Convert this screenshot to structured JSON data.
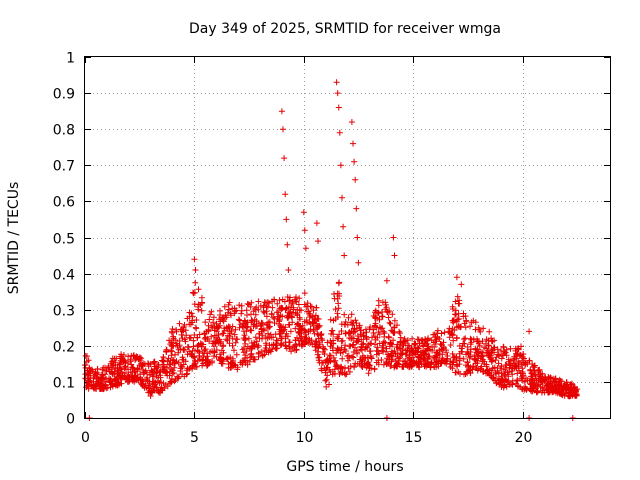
{
  "chart_data": {
    "type": "scatter",
    "title": "Day 349 of 2025, SRMTID for receiver wmga",
    "xlabel": "GPS time / hours",
    "ylabel": "SRMTID / TECUs",
    "xlim": [
      0,
      24
    ],
    "ylim": [
      0,
      1
    ],
    "xticks": [
      0,
      5,
      10,
      15,
      20
    ],
    "xtick_labels": [
      "0",
      "5",
      "10",
      "15",
      "20"
    ],
    "yticks": [
      0,
      0.1,
      0.2,
      0.3,
      0.4,
      0.5,
      0.6,
      0.7,
      0.8,
      0.9,
      1
    ],
    "ytick_labels": [
      "0",
      "0.1",
      "0.2",
      "0.3",
      "0.4",
      "0.5",
      "0.6",
      "0.7",
      "0.8",
      "0.9",
      "1"
    ],
    "grid": true,
    "marker": "plus",
    "color": "#e60000",
    "series": [
      {
        "name": "SRMTID",
        "description": "Approximate envelope of the dense point cloud (hour, typical low, typical high) plus notable spikes",
        "envelope": [
          [
            0.0,
            0.08,
            0.18
          ],
          [
            0.5,
            0.08,
            0.14
          ],
          [
            1.0,
            0.08,
            0.15
          ],
          [
            1.5,
            0.09,
            0.18
          ],
          [
            2.0,
            0.1,
            0.18
          ],
          [
            2.5,
            0.1,
            0.17
          ],
          [
            3.0,
            0.06,
            0.15
          ],
          [
            3.5,
            0.07,
            0.17
          ],
          [
            4.0,
            0.1,
            0.25
          ],
          [
            4.5,
            0.11,
            0.27
          ],
          [
            5.0,
            0.14,
            0.38
          ],
          [
            5.5,
            0.14,
            0.32
          ],
          [
            6.0,
            0.16,
            0.28
          ],
          [
            6.5,
            0.14,
            0.33
          ],
          [
            7.0,
            0.13,
            0.32
          ],
          [
            7.5,
            0.15,
            0.32
          ],
          [
            8.0,
            0.17,
            0.33
          ],
          [
            8.5,
            0.18,
            0.32
          ],
          [
            9.0,
            0.2,
            0.35
          ],
          [
            9.5,
            0.18,
            0.33
          ],
          [
            10.0,
            0.2,
            0.35
          ],
          [
            10.5,
            0.2,
            0.33
          ],
          [
            11.0,
            0.08,
            0.18
          ],
          [
            11.5,
            0.12,
            0.4
          ],
          [
            12.0,
            0.12,
            0.3
          ],
          [
            12.5,
            0.15,
            0.27
          ],
          [
            13.0,
            0.12,
            0.25
          ],
          [
            13.5,
            0.15,
            0.35
          ],
          [
            14.0,
            0.14,
            0.3
          ],
          [
            14.5,
            0.14,
            0.22
          ],
          [
            15.0,
            0.14,
            0.22
          ],
          [
            15.5,
            0.14,
            0.22
          ],
          [
            16.0,
            0.14,
            0.24
          ],
          [
            16.5,
            0.15,
            0.25
          ],
          [
            17.0,
            0.12,
            0.35
          ],
          [
            17.5,
            0.12,
            0.28
          ],
          [
            18.0,
            0.13,
            0.26
          ],
          [
            18.5,
            0.12,
            0.24
          ],
          [
            19.0,
            0.08,
            0.2
          ],
          [
            19.5,
            0.09,
            0.2
          ],
          [
            20.0,
            0.08,
            0.2
          ],
          [
            20.5,
            0.07,
            0.15
          ],
          [
            21.0,
            0.07,
            0.12
          ],
          [
            21.5,
            0.07,
            0.11
          ],
          [
            22.0,
            0.06,
            0.1
          ],
          [
            22.5,
            0.06,
            0.09
          ]
        ],
        "spikes": [
          [
            5.0,
            0.44
          ],
          [
            5.05,
            0.41
          ],
          [
            9.0,
            0.85
          ],
          [
            9.05,
            0.8
          ],
          [
            9.1,
            0.72
          ],
          [
            9.15,
            0.62
          ],
          [
            9.2,
            0.55
          ],
          [
            9.25,
            0.48
          ],
          [
            9.3,
            0.41
          ],
          [
            10.0,
            0.57
          ],
          [
            10.05,
            0.52
          ],
          [
            10.1,
            0.47
          ],
          [
            10.6,
            0.54
          ],
          [
            10.65,
            0.49
          ],
          [
            11.5,
            0.93
          ],
          [
            11.55,
            0.9
          ],
          [
            11.6,
            0.86
          ],
          [
            11.65,
            0.79
          ],
          [
            11.7,
            0.7
          ],
          [
            11.75,
            0.61
          ],
          [
            11.8,
            0.53
          ],
          [
            11.85,
            0.45
          ],
          [
            12.2,
            0.82
          ],
          [
            12.25,
            0.76
          ],
          [
            12.3,
            0.71
          ],
          [
            12.35,
            0.66
          ],
          [
            12.4,
            0.58
          ],
          [
            12.45,
            0.5
          ],
          [
            12.5,
            0.43
          ],
          [
            13.8,
            0.38
          ],
          [
            14.1,
            0.5
          ],
          [
            14.15,
            0.45
          ],
          [
            17.0,
            0.39
          ],
          [
            17.2,
            0.37
          ],
          [
            20.3,
            0.24
          ],
          [
            22.5,
            0.08
          ]
        ],
        "zero_points": [
          [
            0.2,
            0.0
          ],
          [
            13.8,
            0.0
          ],
          [
            20.3,
            0.0
          ],
          [
            22.3,
            0.0
          ]
        ]
      }
    ]
  }
}
